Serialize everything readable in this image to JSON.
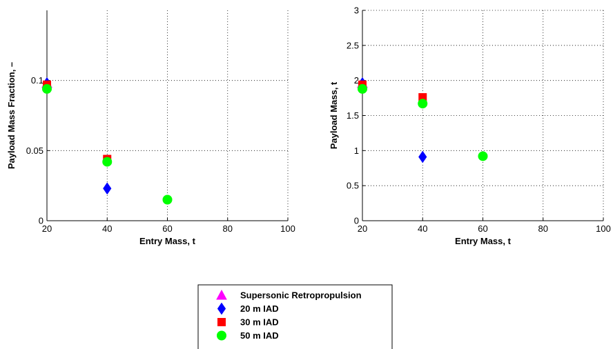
{
  "chart_data": [
    {
      "type": "scatter",
      "xlabel": "Entry Mass, t",
      "ylabel": "Payload Mass Fraction, –",
      "xlim": [
        20,
        100
      ],
      "ylim": [
        0,
        0.15
      ],
      "xticks": [
        "20",
        "40",
        "60",
        "80",
        "100"
      ],
      "yticks": [
        "0",
        "0.05",
        "0.1"
      ],
      "grid": true,
      "series": [
        {
          "name": "Supersonic Retropropulsion",
          "marker": "triangle",
          "color": "#ff00ff",
          "x": [
            20
          ],
          "y": [
            0.098
          ]
        },
        {
          "name": "20 m IAD",
          "marker": "diamond",
          "color": "#0000ff",
          "x": [
            20,
            40
          ],
          "y": [
            0.098,
            0.023
          ]
        },
        {
          "name": "30 m IAD",
          "marker": "square",
          "color": "#ff0000",
          "x": [
            20,
            40
          ],
          "y": [
            0.097,
            0.044
          ]
        },
        {
          "name": "50 m IAD",
          "marker": "circle",
          "color": "#00ff00",
          "x": [
            20,
            40,
            60
          ],
          "y": [
            0.094,
            0.042,
            0.015
          ]
        }
      ]
    },
    {
      "type": "scatter",
      "xlabel": "Entry Mass, t",
      "ylabel": "Payload Mass, t",
      "xlim": [
        20,
        100
      ],
      "ylim": [
        0,
        3
      ],
      "xticks": [
        "20",
        "40",
        "60",
        "80",
        "100"
      ],
      "yticks": [
        "0",
        "0.5",
        "1",
        "1.5",
        "2",
        "2.5",
        "3"
      ],
      "grid": true,
      "series": [
        {
          "name": "Supersonic Retropropulsion",
          "marker": "triangle",
          "color": "#ff00ff",
          "x": [
            20
          ],
          "y": [
            1.96
          ]
        },
        {
          "name": "20 m IAD",
          "marker": "diamond",
          "color": "#0000ff",
          "x": [
            20,
            40
          ],
          "y": [
            1.96,
            0.91
          ]
        },
        {
          "name": "30 m IAD",
          "marker": "square",
          "color": "#ff0000",
          "x": [
            20,
            40
          ],
          "y": [
            1.94,
            1.76
          ]
        },
        {
          "name": "50 m IAD",
          "marker": "circle",
          "color": "#00ff00",
          "x": [
            20,
            40,
            60
          ],
          "y": [
            1.88,
            1.67,
            0.92
          ]
        }
      ]
    }
  ],
  "legend": {
    "placement": "bottom-center",
    "entries": [
      {
        "label": "Supersonic Retropropulsion",
        "marker": "triangle",
        "color": "#ff00ff"
      },
      {
        "label": "20 m IAD",
        "marker": "diamond",
        "color": "#0000ff"
      },
      {
        "label": "30 m IAD",
        "marker": "square",
        "color": "#ff0000"
      },
      {
        "label": "50 m IAD",
        "marker": "circle",
        "color": "#00ff00"
      }
    ]
  }
}
